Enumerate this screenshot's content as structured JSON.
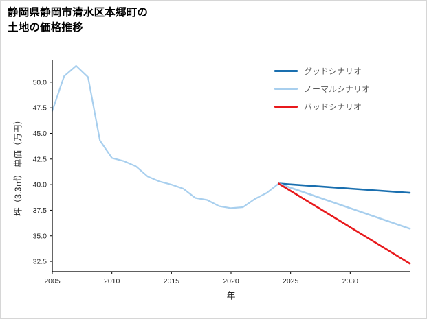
{
  "title": {
    "line1": "静岡県静岡市清水区本郷町の",
    "line2": "土地の価格推移"
  },
  "chart_data": {
    "type": "line",
    "title": "静岡県静岡市清水区本郷町の土地の価格推移",
    "xlabel": "年",
    "ylabel": "坪（3.3㎡） 単価（万円）",
    "grid": false,
    "legend_position": "upper right",
    "xlim": [
      2005,
      2035
    ],
    "ylim": [
      31.5,
      52.2
    ],
    "x_ticks": [
      2005,
      2010,
      2015,
      2020,
      2025,
      2030
    ],
    "y_ticks": [
      32.5,
      35.0,
      37.5,
      40.0,
      42.5,
      45.0,
      47.5,
      50.0
    ],
    "series": [
      {
        "name": "history",
        "color": "#a8cfee",
        "width": 2.2,
        "x": [
          2005,
          2006,
          2007,
          2008,
          2009,
          2010,
          2011,
          2012,
          2013,
          2014,
          2015,
          2016,
          2017,
          2018,
          2019,
          2020,
          2021,
          2022,
          2023,
          2024
        ],
        "y": [
          47.2,
          50.6,
          51.6,
          50.5,
          44.3,
          42.6,
          42.3,
          41.8,
          40.8,
          40.3,
          40.0,
          39.6,
          38.7,
          38.5,
          37.9,
          37.7,
          37.8,
          38.6,
          39.2,
          40.1
        ]
      },
      {
        "name": "グッドシナリオ",
        "color": "#1a6faf",
        "width": 2.6,
        "x": [
          2024,
          2035
        ],
        "y": [
          40.1,
          39.2
        ]
      },
      {
        "name": "ノーマルシナリオ",
        "color": "#a8cfee",
        "width": 2.6,
        "x": [
          2024,
          2035
        ],
        "y": [
          40.1,
          35.7
        ]
      },
      {
        "name": "バッドシナリオ",
        "color": "#e8191c",
        "width": 2.6,
        "x": [
          2024,
          2035
        ],
        "y": [
          40.1,
          32.3
        ]
      }
    ],
    "legend": [
      {
        "label": "グッドシナリオ",
        "color": "#1a6faf"
      },
      {
        "label": "ノーマルシナリオ",
        "color": "#a8cfee"
      },
      {
        "label": "バッドシナリオ",
        "color": "#e8191c"
      }
    ]
  }
}
